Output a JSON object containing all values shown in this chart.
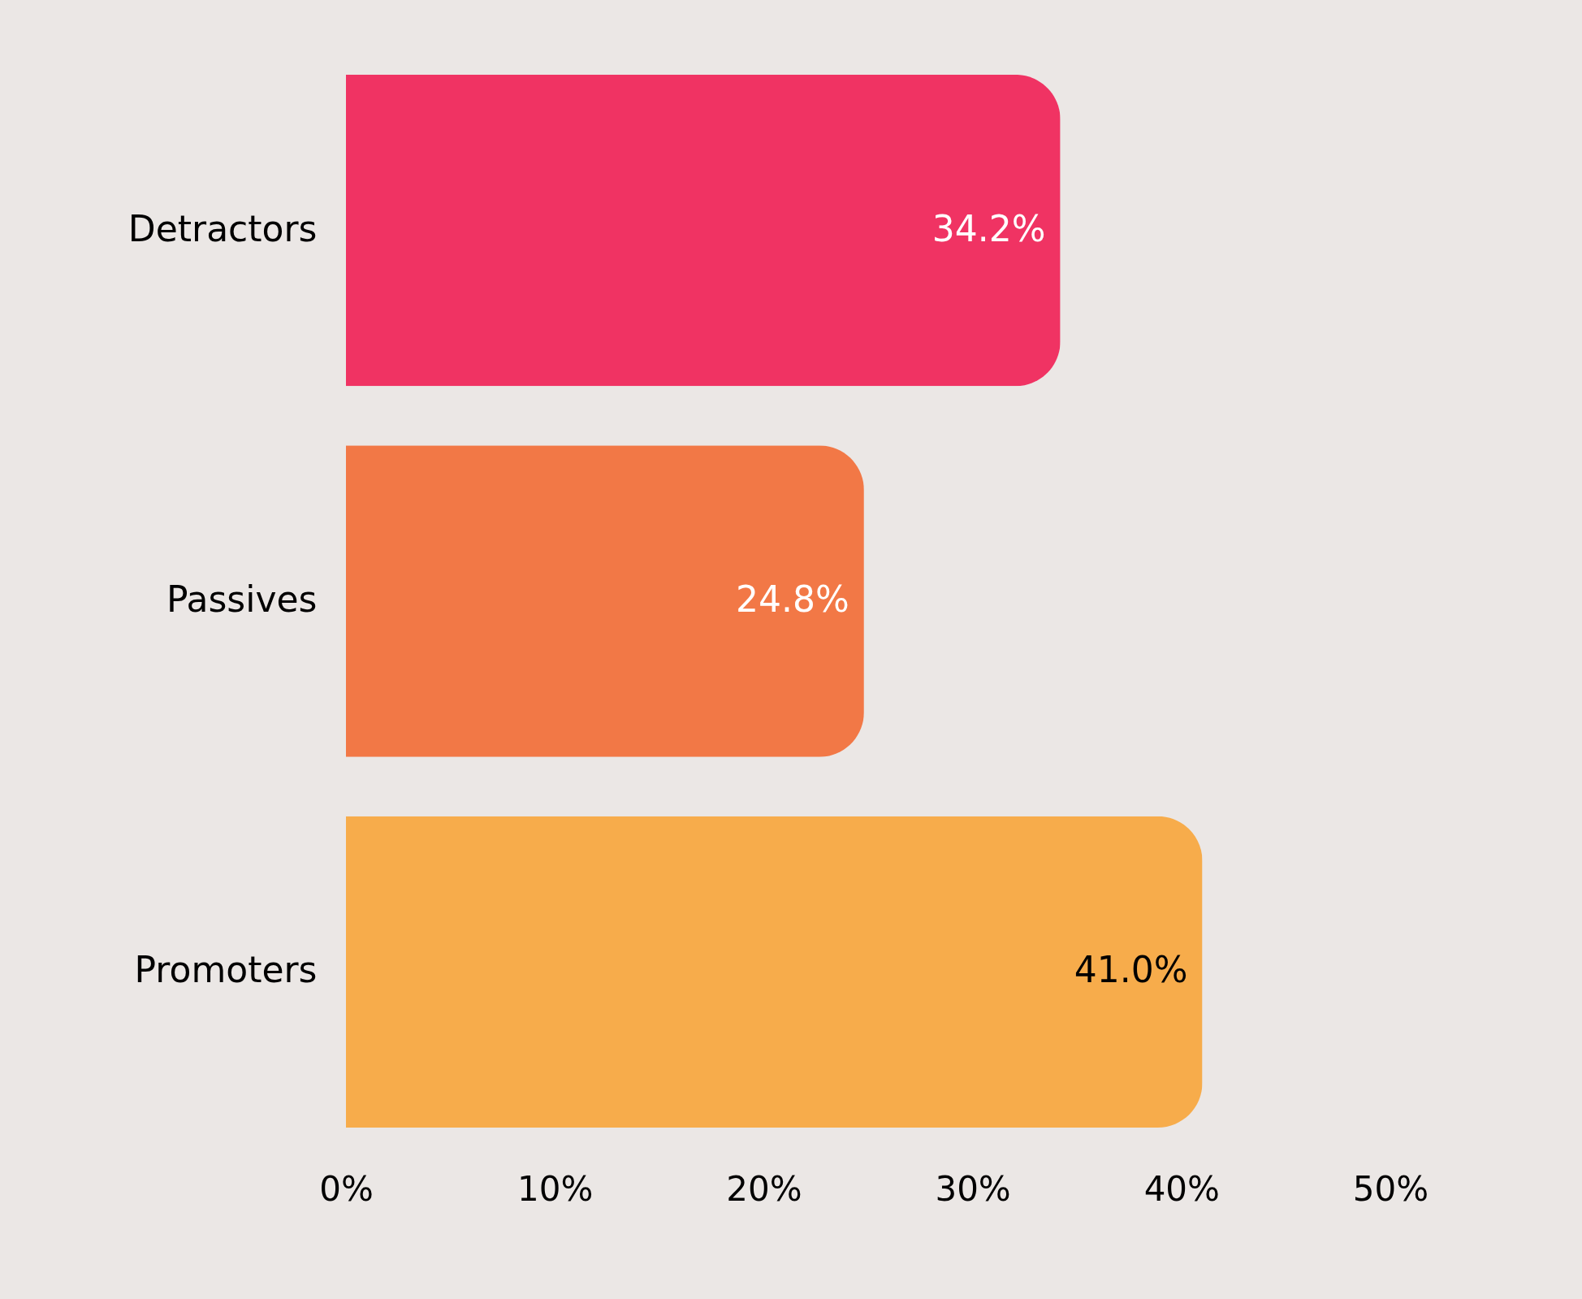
{
  "chart_data": {
    "type": "bar",
    "orientation": "horizontal",
    "categories": [
      "Detractors",
      "Passives",
      "Promoters"
    ],
    "values": [
      34.2,
      24.8,
      41.0
    ],
    "colors": [
      "#f03363",
      "#f27846",
      "#f7ac4b"
    ],
    "value_labels": [
      "34.2%",
      "24.8%",
      "41.0%"
    ],
    "xlim": [
      0,
      50
    ],
    "xticks": [
      {
        "value": 0,
        "label": "0%"
      },
      {
        "value": 10,
        "label": "10%"
      },
      {
        "value": 20,
        "label": "20%"
      },
      {
        "value": 30,
        "label": "30%"
      },
      {
        "value": 40,
        "label": "40%"
      },
      {
        "value": 50,
        "label": "50%"
      }
    ],
    "grid": false
  }
}
